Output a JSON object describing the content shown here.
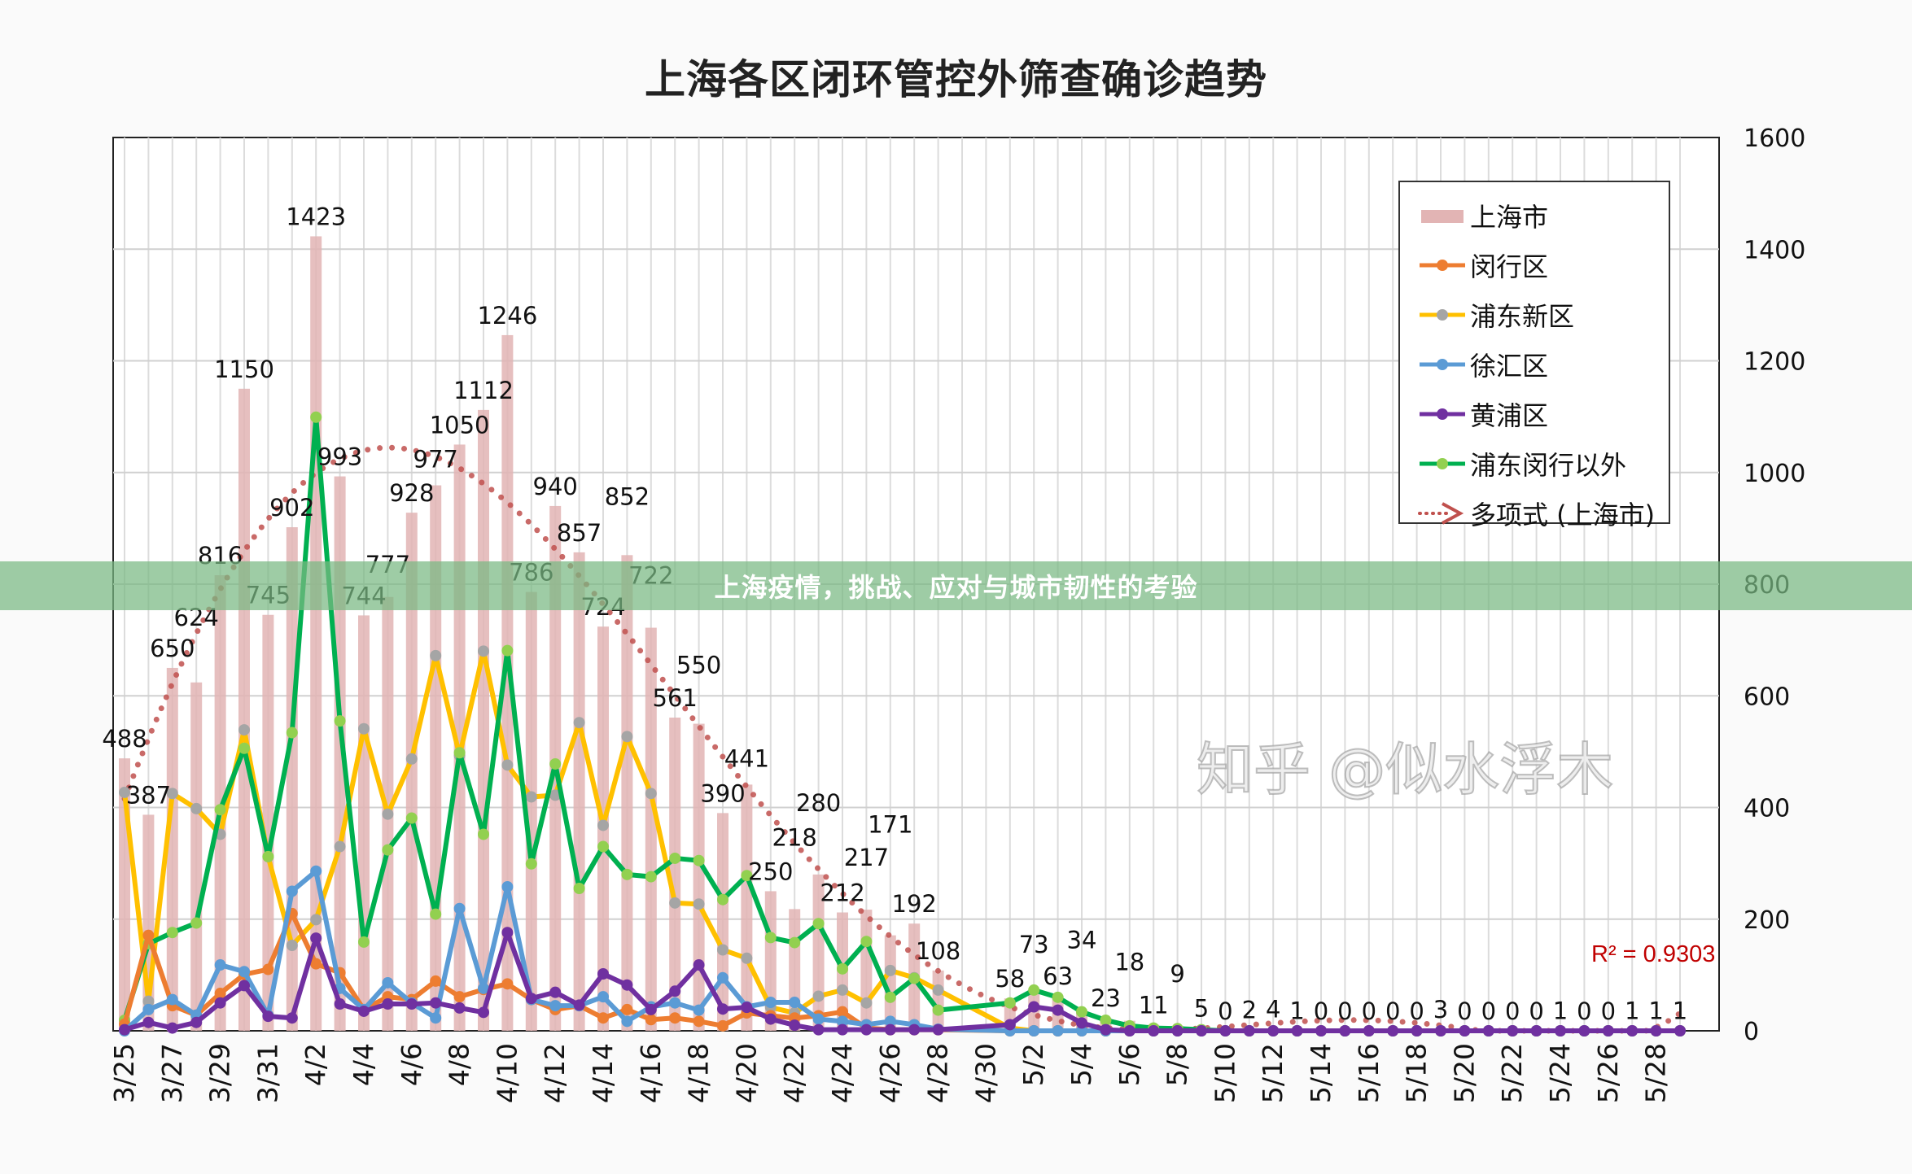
{
  "chart_data": {
    "type": "bar",
    "title": "上海各区闭环管控外筛查确诊趋势",
    "categories": [
      "3/25",
      "3/26",
      "3/27",
      "3/28",
      "3/29",
      "3/30",
      "3/31",
      "4/1",
      "4/2",
      "4/3",
      "4/4",
      "4/5",
      "4/6",
      "4/7",
      "4/8",
      "4/9",
      "4/10",
      "4/11",
      "4/12",
      "4/13",
      "4/14",
      "4/15",
      "4/16",
      "4/17",
      "4/18",
      "4/19",
      "4/20",
      "4/21",
      "4/22",
      "4/23",
      "4/24",
      "4/25",
      "4/26",
      "4/27",
      "4/28",
      "4/29",
      "4/30",
      "5/1",
      "5/2",
      "5/3",
      "5/4",
      "5/5",
      "5/6",
      "5/7",
      "5/8",
      "5/9",
      "5/10",
      "5/11",
      "5/12",
      "5/13",
      "5/14",
      "5/15",
      "5/16",
      "5/17",
      "5/18",
      "5/19",
      "5/20",
      "5/21",
      "5/22",
      "5/23",
      "5/24",
      "5/25",
      "5/26",
      "5/27",
      "5/28",
      "5/29"
    ],
    "x_tick_labels": [
      "3/25",
      "3/27",
      "3/29",
      "3/31",
      "4/2",
      "4/4",
      "4/6",
      "4/8",
      "4/10",
      "4/12",
      "4/14",
      "4/16",
      "4/18",
      "4/20",
      "4/22",
      "4/24",
      "4/26",
      "4/28",
      "4/30",
      "5/2",
      "5/4",
      "5/6",
      "5/8",
      "5/10",
      "5/12",
      "5/14",
      "5/16",
      "5/18",
      "5/20",
      "5/22",
      "5/24",
      "5/26",
      "5/28"
    ],
    "y_axis": {
      "position": "right",
      "ylim": [
        0,
        1600
      ],
      "ticks": [
        "0",
        "200",
        "400",
        "600",
        "800",
        "1000",
        "1200",
        "1400",
        "1600"
      ]
    },
    "grid": true,
    "legend_position": "top-right",
    "bar_series": {
      "name": "上海市",
      "color": "#E2B4B4",
      "values": [
        488,
        387,
        650,
        624,
        816,
        1150,
        745,
        902,
        1423,
        993,
        744,
        777,
        928,
        977,
        1050,
        1112,
        1246,
        786,
        940,
        857,
        724,
        852,
        722,
        561,
        550,
        390,
        441,
        250,
        218,
        280,
        212,
        217,
        171,
        192,
        108,
        null,
        null,
        58,
        73,
        63,
        34,
        23,
        18,
        11,
        9,
        5,
        0,
        2,
        4,
        1,
        0,
        0,
        0,
        0,
        0,
        3,
        0,
        0,
        0,
        0,
        1,
        0,
        0,
        1,
        1,
        1
      ]
    },
    "line_series": [
      {
        "name": "闵行区",
        "color": "#ED7D31",
        "marker": "#ED7D31",
        "values": [
          12,
          171,
          45,
          28,
          67,
          101,
          110,
          210,
          120,
          104,
          38,
          61,
          56,
          89,
          61,
          74,
          84,
          56,
          38,
          45,
          23,
          38,
          20,
          23,
          17,
          9,
          32,
          27,
          23,
          27,
          34,
          5,
          2,
          2,
          2,
          null,
          null,
          0,
          0,
          0,
          0,
          0,
          0,
          0,
          0,
          0,
          0,
          0,
          0,
          0,
          0,
          0,
          0,
          0,
          0,
          0,
          0,
          0,
          0,
          0,
          0,
          0,
          0,
          0,
          0,
          0
        ]
      },
      {
        "name": "浦东新区",
        "color": "#FFC000",
        "marker": "#A5A5A5",
        "values": [
          427,
          53,
          425,
          398,
          352,
          539,
          312,
          153,
          199,
          330,
          541,
          388,
          487,
          672,
          493,
          680,
          476,
          419,
          422,
          552,
          368,
          527,
          425,
          229,
          227,
          145,
          130,
          42,
          32,
          62,
          73,
          50,
          108,
          95,
          73,
          null,
          null,
          5,
          0,
          0,
          0,
          0,
          0,
          0,
          0,
          0,
          0,
          0,
          0,
          0,
          0,
          0,
          0,
          0,
          0,
          0,
          0,
          0,
          0,
          0,
          0,
          0,
          0,
          0,
          0,
          0
        ]
      },
      {
        "name": "徐汇区",
        "color": "#5B9BD5",
        "marker": "#5B9BD5",
        "values": [
          0,
          38,
          56,
          28,
          118,
          106,
          28,
          250,
          286,
          76,
          38,
          86,
          50,
          23,
          219,
          76,
          258,
          56,
          45,
          45,
          61,
          17,
          43,
          50,
          37,
          95,
          43,
          51,
          51,
          21,
          17,
          11,
          17,
          11,
          3,
          null,
          null,
          0,
          0,
          0,
          0,
          0,
          0,
          0,
          0,
          0,
          0,
          0,
          0,
          0,
          0,
          0,
          0,
          0,
          0,
          0,
          0,
          0,
          0,
          0,
          0,
          0,
          0,
          0,
          0,
          0
        ]
      },
      {
        "name": "黄浦区",
        "color": "#7030A0",
        "marker": "#7030A0",
        "values": [
          2,
          15,
          5,
          15,
          50,
          81,
          26,
          23,
          166,
          48,
          35,
          48,
          48,
          50,
          41,
          33,
          176,
          58,
          69,
          46,
          102,
          82,
          38,
          71,
          118,
          39,
          42,
          21,
          10,
          2,
          2,
          2,
          2,
          2,
          2,
          null,
          null,
          11,
          43,
          37,
          14,
          2,
          0,
          0,
          0,
          0,
          0,
          0,
          0,
          0,
          0,
          0,
          0,
          0,
          0,
          0,
          0,
          0,
          0,
          0,
          0,
          0,
          0,
          0,
          0,
          0
        ]
      },
      {
        "name": "浦东闵行以外",
        "color": "#00B050",
        "marker": "#92D050",
        "values": [
          19,
          156,
          176,
          193,
          396,
          506,
          312,
          534,
          1099,
          555,
          159,
          324,
          381,
          209,
          498,
          352,
          681,
          299,
          478,
          255,
          330,
          280,
          276,
          309,
          305,
          235,
          278,
          167,
          158,
          192,
          111,
          160,
          60,
          94,
          37,
          null,
          null,
          50,
          73,
          60,
          34,
          19,
          9,
          5,
          4,
          2,
          0,
          0,
          0,
          0,
          0,
          0,
          0,
          0,
          0,
          0,
          0,
          0,
          0,
          0,
          0,
          0,
          0,
          0,
          0,
          0
        ]
      }
    ],
    "trendline": {
      "name": "多项式 (上海市)",
      "type": "polynomial",
      "color": "#C0504D",
      "r2_label": "R² = 0.9303"
    }
  },
  "banner": {
    "text": "上海疫情，挑战、应对与城市韧性的考验"
  },
  "watermark": {
    "text": "知乎 @似水浮木"
  }
}
